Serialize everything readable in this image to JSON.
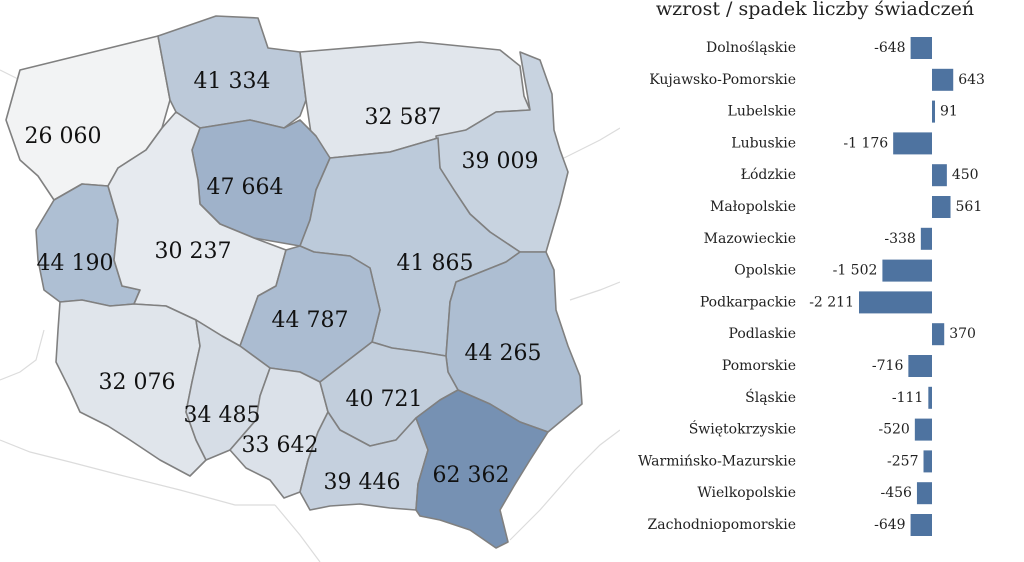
{
  "chart_data": [
    {
      "type": "choropleth",
      "title": "",
      "regions": [
        {
          "name": "Zachodniopomorskie",
          "value": "26 060",
          "color": "#f2f3f4"
        },
        {
          "name": "Pomorskie",
          "value": "41 334",
          "color": "#bcc9d9"
        },
        {
          "name": "Warmińsko-Mazurskie",
          "value": "32 587",
          "color": "#e1e6ec"
        },
        {
          "name": "Podlaskie",
          "value": "39 009",
          "color": "#c8d3e0"
        },
        {
          "name": "Kujawsko-Pomorskie",
          "value": "47 664",
          "color": "#9fb2ca"
        },
        {
          "name": "Lubuskie",
          "value": "44 190",
          "color": "#aebfd3"
        },
        {
          "name": "Wielkopolskie",
          "value": "30 237",
          "color": "#e6eaef"
        },
        {
          "name": "Mazowieckie",
          "value": "41 865",
          "color": "#bccada"
        },
        {
          "name": "Łódzkie",
          "value": "44 787",
          "color": "#abbcd1"
        },
        {
          "name": "Lubelskie",
          "value": "44 265",
          "color": "#adbed2"
        },
        {
          "name": "Dolnośląskie",
          "value": "32 076",
          "color": "#e0e5eb"
        },
        {
          "name": "Opolskie",
          "value": "34 485",
          "color": "#d6dde6"
        },
        {
          "name": "Śląskie",
          "value": "33 642",
          "color": "#dbe1e9"
        },
        {
          "name": "Świętokrzyskie",
          "value": "40 721",
          "color": "#c2cedc"
        },
        {
          "name": "Małopolskie",
          "value": "39 446",
          "color": "#c5d0de"
        },
        {
          "name": "Podkarpackie",
          "value": "62 362",
          "color": "#7691b3"
        }
      ]
    },
    {
      "type": "bar",
      "orientation": "horizontal",
      "title": "wzrost / spadek liczby świadczeń",
      "categories": [
        "Dolnośląskie",
        "Kujawsko-Pomorskie",
        "Lubelskie",
        "Lubuskie",
        "Łódzkie",
        "Małopolskie",
        "Mazowieckie",
        "Opolskie",
        "Podkarpackie",
        "Podlaskie",
        "Pomorskie",
        "Śląskie",
        "Świętokrzyskie",
        "Warmińsko-Mazurskie",
        "Wielkopolskie",
        "Zachodniopomorskie"
      ],
      "values": [
        -648,
        643,
        91,
        -1176,
        450,
        561,
        -338,
        -1502,
        -2211,
        370,
        -716,
        -111,
        -520,
        -257,
        -456,
        -649
      ],
      "value_labels": [
        "-648",
        "643",
        "91",
        "-1 176",
        "450",
        "561",
        "-338",
        "-1 502",
        "-2 211",
        "370",
        "-716",
        "-111",
        "-520",
        "-257",
        "-456",
        "-649"
      ],
      "bar_color": "#4e73a0",
      "xlabel": "",
      "ylabel": "",
      "grid": false
    }
  ]
}
